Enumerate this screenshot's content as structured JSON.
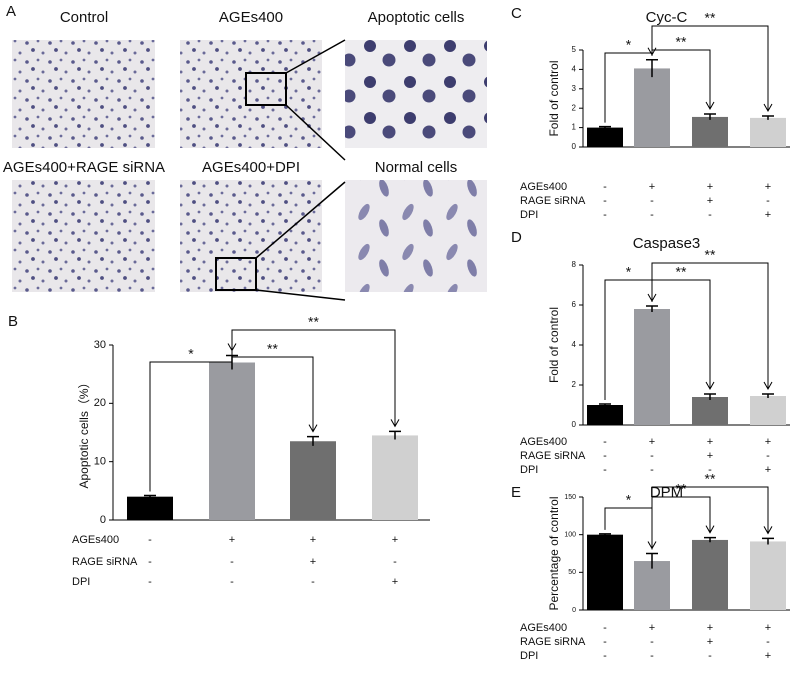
{
  "micrographs": {
    "panel": "A",
    "images": [
      {
        "label": "Control"
      },
      {
        "label": "AGEs400"
      },
      {
        "label": "Apoptotic cells"
      },
      {
        "label": "AGEs400+RAGE siRNA"
      },
      {
        "label": "AGEs400+DPI"
      },
      {
        "label": "Normal cells"
      }
    ]
  },
  "chart_data": [
    {
      "type": "bar",
      "panel": "B",
      "y_label": "Apoptotic cells（%）",
      "values": [
        4,
        27,
        13.5,
        14.5
      ],
      "errors": [
        0.2,
        1.2,
        0.8,
        0.7
      ],
      "colors": [
        "#000000",
        "#9a9ba0",
        "#6f6f6f",
        "#d0d0d0"
      ],
      "ylim": [
        0,
        30
      ],
      "yticks": [
        0,
        10,
        20,
        30
      ],
      "conditions": [
        {
          "name": "AGEs400",
          "marks": [
            "-",
            "+",
            "+",
            "+"
          ]
        },
        {
          "name": "RAGE siRNA",
          "marks": [
            "-",
            "-",
            "+",
            "-"
          ]
        },
        {
          "name": "DPI",
          "marks": [
            "-",
            "-",
            "-",
            "+"
          ]
        }
      ],
      "brackets": [
        {
          "from": 0,
          "to": 1,
          "label": "*"
        },
        {
          "from": 1,
          "to": 2,
          "label": "**"
        },
        {
          "from": 1,
          "to": 3,
          "label": "**"
        }
      ]
    },
    {
      "type": "bar",
      "panel": "C",
      "title": "Cyc-C",
      "y_label": "Fold of control",
      "values": [
        1,
        4.05,
        1.55,
        1.5
      ],
      "errors": [
        0.05,
        0.45,
        0.15,
        0.1
      ],
      "colors": [
        "#000000",
        "#9a9ba0",
        "#6f6f6f",
        "#d0d0d0"
      ],
      "ylim": [
        0,
        5
      ],
      "yticks": [
        0,
        1,
        2,
        3,
        4,
        5
      ],
      "conditions": [
        {
          "name": "AGEs400",
          "marks": [
            "-",
            "+",
            "+",
            "+"
          ]
        },
        {
          "name": "RAGE siRNA",
          "marks": [
            "-",
            "-",
            "+",
            "-"
          ]
        },
        {
          "name": "DPI",
          "marks": [
            "-",
            "-",
            "-",
            "+"
          ]
        }
      ],
      "brackets": [
        {
          "from": 0,
          "to": 1,
          "label": "*"
        },
        {
          "from": 1,
          "to": 2,
          "label": "**"
        },
        {
          "from": 1,
          "to": 3,
          "label": "**"
        }
      ]
    },
    {
      "type": "bar",
      "panel": "D",
      "title": "Caspase3",
      "y_label": "Fold of control",
      "values": [
        1,
        5.8,
        1.4,
        1.45
      ],
      "errors": [
        0.05,
        0.15,
        0.15,
        0.1
      ],
      "colors": [
        "#000000",
        "#9a9ba0",
        "#6f6f6f",
        "#d0d0d0"
      ],
      "ylim": [
        0,
        8
      ],
      "yticks": [
        0,
        2,
        4,
        6,
        8
      ],
      "conditions": [
        {
          "name": "AGEs400",
          "marks": [
            "-",
            "+",
            "+",
            "+"
          ]
        },
        {
          "name": "RAGE siRNA",
          "marks": [
            "-",
            "-",
            "+",
            "-"
          ]
        },
        {
          "name": "DPI",
          "marks": [
            "-",
            "-",
            "-",
            "+"
          ]
        }
      ],
      "brackets": [
        {
          "from": 0,
          "to": 1,
          "label": "*"
        },
        {
          "from": 1,
          "to": 2,
          "label": "**"
        },
        {
          "from": 1,
          "to": 3,
          "label": "**"
        }
      ]
    },
    {
      "type": "bar",
      "panel": "E",
      "title": "DPM",
      "y_label": "Percentage of control",
      "values": [
        100,
        65,
        93,
        91
      ],
      "errors": [
        1,
        10,
        3,
        4
      ],
      "colors": [
        "#000000",
        "#9a9ba0",
        "#6f6f6f",
        "#d0d0d0"
      ],
      "ylim": [
        0,
        150
      ],
      "yticks": [
        0,
        50,
        100,
        150
      ],
      "conditions": [
        {
          "name": "AGEs400",
          "marks": [
            "-",
            "+",
            "+",
            "+"
          ]
        },
        {
          "name": "RAGE siRNA",
          "marks": [
            "-",
            "-",
            "+",
            "-"
          ]
        },
        {
          "name": "DPI",
          "marks": [
            "-",
            "-",
            "-",
            "+"
          ]
        }
      ],
      "brackets": [
        {
          "from": 0,
          "to": 1,
          "label": "*"
        },
        {
          "from": 1,
          "to": 2,
          "label": "**"
        },
        {
          "from": 1,
          "to": 3,
          "label": "**"
        }
      ]
    }
  ]
}
